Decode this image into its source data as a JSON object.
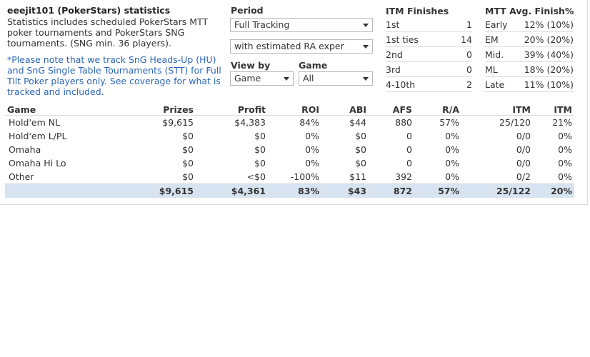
{
  "header": {
    "title": "eeejit101 (PokerStars) statistics",
    "description": "Statistics includes scheduled PokerStars MTT poker tournaments and PokerStars SNG tournaments. (SNG min. 36 players).",
    "note": "*Please note that we track SnG Heads-Up (HU) and SnG Single Table Tournaments (STT) for Full Tilt Poker players only. See coverage for what is tracked and included."
  },
  "filters": {
    "period_label": "Period",
    "period_value": "Full Tracking",
    "ra_value": "with estimated RA exper",
    "viewby_label": "View by",
    "viewby_value": "Game",
    "game_label": "Game",
    "game_value": "All"
  },
  "itm_finishes": {
    "title": "ITM Finishes",
    "rows": [
      {
        "label": "1st",
        "value": "1"
      },
      {
        "label": "1st ties",
        "value": "14"
      },
      {
        "label": "2nd",
        "value": "0"
      },
      {
        "label": "3rd",
        "value": "0"
      },
      {
        "label": "4-10th",
        "value": "2"
      }
    ]
  },
  "avg_finish": {
    "title": "MTT Avg. Finish%",
    "rows": [
      {
        "label": "Early",
        "value": "12% (10%)"
      },
      {
        "label": "EM",
        "value": "20% (20%)"
      },
      {
        "label": "Mid.",
        "value": "39% (40%)"
      },
      {
        "label": "ML",
        "value": "18% (20%)"
      },
      {
        "label": "Late",
        "value": "11% (10%)"
      }
    ]
  },
  "table": {
    "headers": [
      "Game",
      "Prizes",
      "Profit",
      "ROI",
      "ABI",
      "AFS",
      "R/A",
      "ITM",
      "ITM"
    ],
    "rows": [
      [
        "Hold'em NL",
        "$9,615",
        "$4,383",
        "84%",
        "$44",
        "880",
        "57%",
        "25/120",
        "21%"
      ],
      [
        "Hold'em L/PL",
        "$0",
        "$0",
        "0%",
        "$0",
        "0",
        "0%",
        "0/0",
        "0%"
      ],
      [
        "Omaha",
        "$0",
        "$0",
        "0%",
        "$0",
        "0",
        "0%",
        "0/0",
        "0%"
      ],
      [
        "Omaha Hi Lo",
        "$0",
        "$0",
        "0%",
        "$0",
        "0",
        "0%",
        "0/0",
        "0%"
      ],
      [
        "Other",
        "$0",
        "<$0",
        "-100%",
        "$11",
        "392",
        "0%",
        "0/2",
        "0%"
      ]
    ],
    "total": [
      "",
      "$9,615",
      "$4,361",
      "83%",
      "$43",
      "872",
      "57%",
      "25/122",
      "20%"
    ]
  }
}
